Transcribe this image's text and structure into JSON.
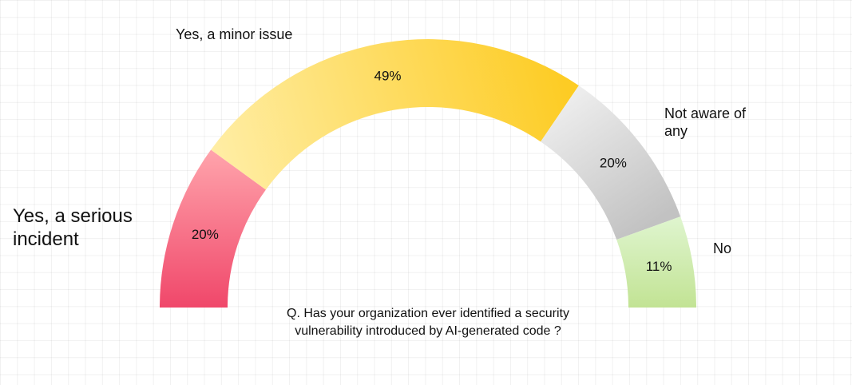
{
  "question": "Q. Has your organization ever identified a security vulnerability introduced by AI-generated code ?",
  "chart_data": {
    "type": "pie",
    "variant": "semicircle-donut",
    "categories": [
      "Yes, a serious incident",
      "Yes, a minor issue",
      "Not aware of any",
      "No"
    ],
    "values": [
      20,
      49,
      20,
      11
    ],
    "value_labels": [
      "20%",
      "49%",
      "20%",
      "11%"
    ],
    "unit": "%",
    "colors": [
      [
        "#f0476a",
        "#ffa3ab"
      ],
      [
        "#ffeea7",
        "#fdcc24"
      ],
      [
        "#f2f2f2",
        "#c2c2c2"
      ],
      [
        "#e2f7d5",
        "#c2e394"
      ]
    ]
  }
}
